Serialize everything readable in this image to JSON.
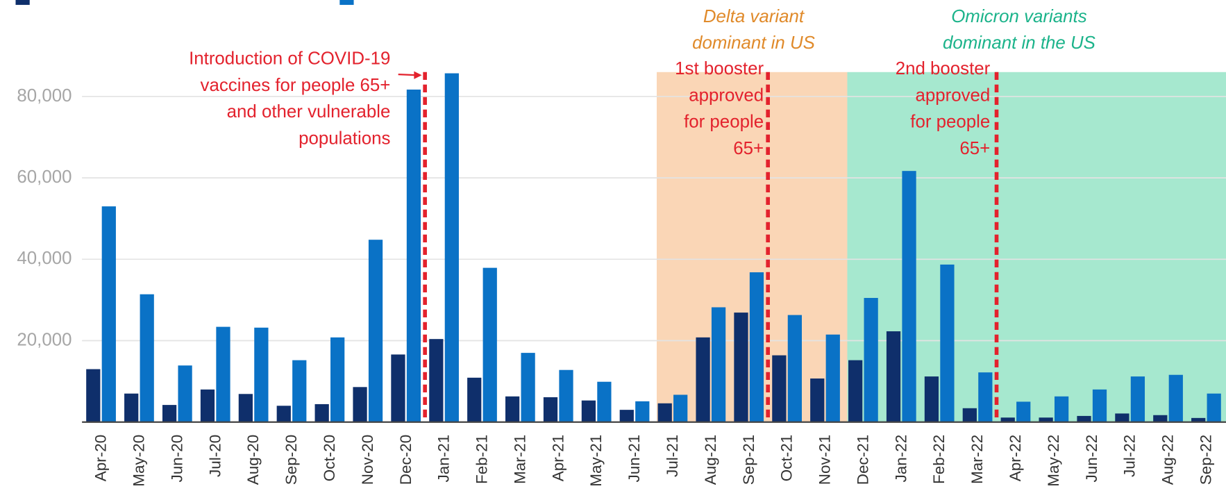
{
  "chart_data": {
    "type": "grouped-bar",
    "categories": [
      "Apr-20",
      "May-20",
      "Jun-20",
      "Jul-20",
      "Aug-20",
      "Sep-20",
      "Oct-20",
      "Nov-20",
      "Dec-20",
      "Jan-21",
      "Feb-21",
      "Mar-21",
      "Apr-21",
      "May-21",
      "Jun-21",
      "Jul-21",
      "Aug-21",
      "Sep-21",
      "Oct-21",
      "Nov-21",
      "Dec-21",
      "Jan-22",
      "Feb-22",
      "Mar-22",
      "Apr-22",
      "May-22",
      "Jun-22",
      "Jul-22",
      "Aug-22",
      "Sep-22"
    ],
    "series": [
      {
        "color": "#0f2f6b",
        "values": [
          13000,
          7000,
          4200,
          8000,
          6900,
          4000,
          4400,
          8600,
          16600,
          20400,
          10900,
          6300,
          6100,
          5300,
          3000,
          4600,
          20800,
          26900,
          16400,
          10700,
          15200,
          22300,
          11200,
          3400,
          1100,
          1100,
          1500,
          2100,
          1700,
          1000
        ]
      },
      {
        "color": "#0a72c6",
        "values": [
          53000,
          31400,
          13900,
          23400,
          23200,
          15200,
          20800,
          44800,
          81700,
          85700,
          37900,
          17000,
          12800,
          9900,
          5100,
          6700,
          28200,
          36800,
          26300,
          21500,
          30500,
          61700,
          38700,
          12200,
          5000,
          6300,
          8000,
          11200,
          11600,
          7000
        ]
      }
    ],
    "ylim": [
      0,
      86000
    ],
    "yticks": [
      {
        "value": 20000,
        "label": "20,000"
      },
      {
        "value": 40000,
        "label": "40,000"
      },
      {
        "value": 60000,
        "label": "60,000"
      },
      {
        "value": 80000,
        "label": "80,000"
      }
    ],
    "grid": true,
    "regions": [
      {
        "from": "Jul-21",
        "to": "Nov-21",
        "color": "#fad6b6",
        "text_color": "#e08a2a",
        "label": [
          "Delta variant",
          "dominant in US"
        ]
      },
      {
        "from": "Dec-21",
        "to": "Sep-22",
        "color": "#a6e8cf",
        "text_color": "#1bb38a",
        "label": [
          "Omicron variants",
          "dominant in the US"
        ]
      }
    ],
    "vlines": [
      {
        "after": "Dec-20",
        "color": "#e3222d",
        "label": [
          "Introduction of COVID-19",
          "vaccines for people 65+",
          "and other vulnerable",
          "populations"
        ]
      },
      {
        "after": "Sep-21",
        "color": "#e3222d",
        "label": [
          "1st booster",
          "approved",
          "for people",
          "65+"
        ]
      },
      {
        "after": "Mar-22",
        "color": "#e3222d",
        "label": [
          "2nd booster",
          "approved",
          "for people",
          "65+"
        ]
      }
    ]
  }
}
